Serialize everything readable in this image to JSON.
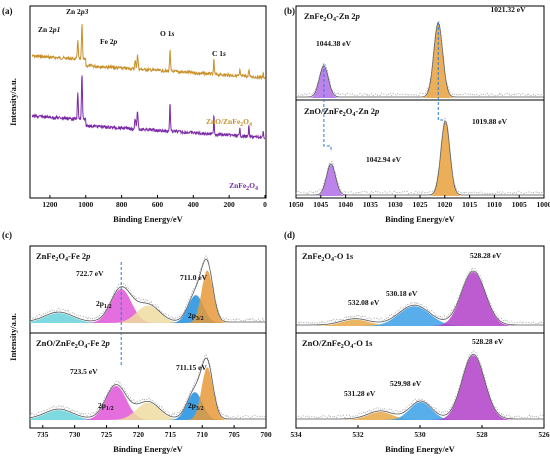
{
  "colors": {
    "survey_zfo": "#7b2aa6",
    "survey_zno": "#c9902a",
    "zn_purple": "#b06ee6",
    "zn_orange": "#e8a03c",
    "fe_pink": "#e055d8",
    "fe_cyan": "#68d2dc",
    "fe_yellow": "#eedca0",
    "fe_blue": "#1e8fe0",
    "fe_orange": "#e89a3a",
    "o_purple": "#b040c8",
    "o_blue": "#3aa0e8",
    "o_orange": "#e8a848",
    "envelope": "#999999",
    "dashed_arrow": "#2a7ae0"
  },
  "chart_data": [
    {
      "id": "a",
      "panel_label": "(a)",
      "type": "line",
      "xlabel": "Binding Energy/eV",
      "ylabel": "Intensity/a.u.",
      "xlim": [
        1300,
        0
      ],
      "xticks": [
        "1200",
        "1000",
        "800",
        "600",
        "400",
        "200",
        "0"
      ],
      "series": [
        {
          "name": "ZnO/ZnFe2O4",
          "label": "ZnO/ZnFe",
          "sub": "2",
          "label2": "O",
          "sub2": "4",
          "color": "#c9902a"
        },
        {
          "name": "ZnFe2O4",
          "label": "ZnFe",
          "sub": "2",
          "label2": "O",
          "sub2": "4",
          "color": "#7b2aa6"
        }
      ],
      "peaks": [
        {
          "label": "Zn 2p1",
          "pre": "Zn 2",
          "ital": "p1",
          "x": 1044.4
        },
        {
          "label": "Zn 2p3",
          "pre": "Zn 2",
          "ital": "p3",
          "x": 1021.3
        },
        {
          "label": "Fe 2p",
          "pre": "Fe 2",
          "ital": "p",
          "x": 711
        },
        {
          "label": "O 1s",
          "pre": "O 1",
          "ital": "s",
          "x": 530
        },
        {
          "label": "C 1s",
          "pre": "C 1",
          "ital": "s",
          "x": 285
        }
      ]
    },
    {
      "id": "b",
      "panel_label": "(b)",
      "type": "line",
      "xlabel": "Binding Energy/eV",
      "xlim": [
        1050,
        1000
      ],
      "xticks": [
        "1050",
        "1045",
        "1040",
        "1035",
        "1030",
        "1025",
        "1020",
        "1015",
        "1010",
        "1005",
        "1000"
      ],
      "top": {
        "pre": "ZnFe",
        "s1": "2",
        "mid": "O",
        "s2": "4",
        "post": "-Zn 2",
        "ital": "p",
        "peaks": [
          {
            "value": "1044.38 eV",
            "x": 1044.38,
            "color": "#b06ee6"
          },
          {
            "value": "1021.32 eV",
            "x": 1021.32,
            "color": "#e8a03c"
          }
        ]
      },
      "bottom": {
        "pre": "ZnO/ZnFe",
        "s1": "2",
        "mid": "O",
        "s2": "4",
        "post": "-Zn 2",
        "ital": "p",
        "peaks": [
          {
            "value": "1042.94 eV",
            "x": 1042.94,
            "color": "#b06ee6"
          },
          {
            "value": "1019.88 eV",
            "x": 1019.88,
            "color": "#e8a03c"
          }
        ]
      }
    },
    {
      "id": "c",
      "panel_label": "(c)",
      "type": "line",
      "xlabel": "Binding Energy/eV",
      "ylabel": "Intensity/a.u.",
      "xlim": [
        737,
        700
      ],
      "xticks": [
        "735",
        "730",
        "725",
        "720",
        "715",
        "710",
        "705",
        "700"
      ],
      "top": {
        "pre": "ZnFe",
        "s1": "2",
        "mid": "O",
        "s2": "4",
        "post": "-Fe 2",
        "ital": "p",
        "peaks": [
          {
            "value": "722.7 eV",
            "x": 722.7
          },
          {
            "value": "711.0 eV",
            "x": 711.0
          }
        ]
      },
      "bottom": {
        "pre": "ZnO/ZnFe",
        "s1": "2",
        "mid": "O",
        "s2": "4",
        "post": "-Fe 2",
        "ital": "p",
        "peaks": [
          {
            "value": "723.5 eV",
            "x": 723.5
          },
          {
            "value": "711.15 eV",
            "x": 711.15
          }
        ]
      },
      "orbitals": [
        {
          "main": "2p",
          "sub": "1/2"
        },
        {
          "main": "2p",
          "sub": "3/2"
        }
      ]
    },
    {
      "id": "d",
      "panel_label": "(d)",
      "type": "line",
      "xlabel": "Binding Energy/eV",
      "xlim": [
        534,
        526
      ],
      "xticks": [
        "534",
        "532",
        "530",
        "528",
        "526"
      ],
      "top": {
        "pre": "ZnFe",
        "s1": "2",
        "mid": "O",
        "s2": "4",
        "post": "-O 1s",
        "peaks": [
          {
            "value": "532.08 eV",
            "x": 532.08,
            "color": "#e8a848"
          },
          {
            "value": "530.18 eV",
            "x": 530.18,
            "color": "#3aa0e8"
          },
          {
            "value": "528.28 eV",
            "x": 528.28,
            "color": "#b040c8"
          }
        ]
      },
      "bottom": {
        "pre": "ZnO/ZnFe",
        "s1": "2",
        "mid": "O",
        "s2": "4",
        "post": "-O 1s",
        "peaks": [
          {
            "value": "531.28 eV",
            "x": 531.28,
            "color": "#e8a848"
          },
          {
            "value": "529.98 eV",
            "x": 529.98,
            "color": "#3aa0e8"
          },
          {
            "value": "528.28 eV",
            "x": 528.28,
            "color": "#b040c8"
          }
        ]
      }
    }
  ]
}
